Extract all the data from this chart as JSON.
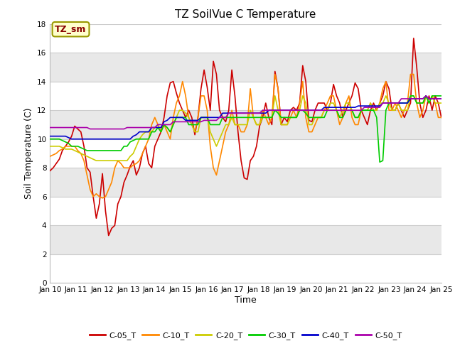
{
  "title": "TZ SoilVue C Temperature",
  "xlabel": "Time",
  "ylabel": "Soil Temperature (C)",
  "ylim": [
    0,
    18
  ],
  "yticks": [
    0,
    2,
    4,
    6,
    8,
    10,
    12,
    14,
    16,
    18
  ],
  "background_color": "#ffffff",
  "plot_bg_color": "#ffffff",
  "grid_color": "#cccccc",
  "band_colors": [
    "#ffffff",
    "#e8e8e8"
  ],
  "annotation_text": "TZ_sm",
  "annotation_bg": "#ffffcc",
  "annotation_border": "#999900",
  "legend_entries": [
    "C-05_T",
    "C-10_T",
    "C-20_T",
    "C-30_T",
    "C-40_T",
    "C-50_T"
  ],
  "line_colors": [
    "#cc0000",
    "#ff8800",
    "#cccc00",
    "#00cc00",
    "#0000cc",
    "#aa00aa"
  ],
  "x_tick_labels": [
    "Jan 10",
    "Jan 11",
    "Jan 12",
    "Jan 13",
    "Jan 14",
    "Jan 15",
    "Jan 16",
    "Jan 17",
    "Jan 18",
    "Jan 19",
    "Jan 20",
    "Jan 21",
    "Jan 22",
    "Jan 23",
    "Jan 24",
    "Jan 25"
  ],
  "C05": [
    7.8,
    8.0,
    8.3,
    8.6,
    9.2,
    9.5,
    9.8,
    10.2,
    10.9,
    10.7,
    10.5,
    9.5,
    8.0,
    7.7,
    6.0,
    4.5,
    5.5,
    7.6,
    5.0,
    3.3,
    3.8,
    4.0,
    5.5,
    6.0,
    7.0,
    7.5,
    8.1,
    8.5,
    7.5,
    8.0,
    9.0,
    9.5,
    8.3,
    8.0,
    9.5,
    10.0,
    10.5,
    11.5,
    13.0,
    13.9,
    14.0,
    13.2,
    12.5,
    12.0,
    11.5,
    12.0,
    11.5,
    10.3,
    11.5,
    13.5,
    14.8,
    13.6,
    12.0,
    15.4,
    14.5,
    12.0,
    11.5,
    11.2,
    12.0,
    14.8,
    13.0,
    10.5,
    8.5,
    7.3,
    7.2,
    8.5,
    8.8,
    9.5,
    10.9,
    11.5,
    12.5,
    11.5,
    11.0,
    14.7,
    13.5,
    11.0,
    11.5,
    11.2,
    12.0,
    12.2,
    12.0,
    12.5,
    15.1,
    14.0,
    11.3,
    11.2,
    12.0,
    12.5,
    12.5,
    12.5,
    12.0,
    12.5,
    13.8,
    13.0,
    12.5,
    11.5,
    12.0,
    12.5,
    13.0,
    13.9,
    13.5,
    12.0,
    11.5,
    11.0,
    12.0,
    12.5,
    12.0,
    12.5,
    13.0,
    14.0,
    13.5,
    12.0,
    12.0,
    12.5,
    12.0,
    11.5,
    12.0,
    12.5,
    17.0,
    15.0,
    12.5,
    11.5,
    12.0,
    13.0,
    12.0,
    13.0,
    12.5,
    11.5
  ],
  "C10": [
    8.8,
    8.9,
    9.0,
    9.2,
    9.3,
    9.5,
    9.5,
    9.5,
    9.5,
    9.2,
    9.0,
    8.5,
    7.5,
    6.5,
    6.0,
    6.2,
    6.0,
    5.9,
    6.0,
    6.5,
    7.0,
    8.0,
    8.5,
    8.3,
    8.0,
    8.0,
    8.0,
    8.2,
    8.3,
    8.5,
    9.0,
    9.5,
    10.0,
    11.0,
    11.5,
    11.0,
    10.5,
    11.0,
    10.5,
    10.0,
    11.5,
    12.5,
    13.0,
    14.0,
    13.0,
    11.5,
    11.0,
    10.5,
    11.5,
    13.0,
    13.0,
    12.0,
    9.5,
    8.0,
    7.5,
    8.5,
    9.5,
    10.5,
    11.0,
    12.0,
    11.0,
    11.0,
    10.5,
    10.5,
    11.0,
    13.5,
    11.5,
    11.0,
    11.0,
    12.0,
    11.5,
    11.0,
    11.5,
    14.5,
    13.5,
    11.0,
    11.0,
    11.0,
    11.5,
    12.0,
    11.5,
    12.5,
    14.0,
    11.5,
    10.5,
    10.5,
    11.0,
    11.5,
    11.5,
    12.0,
    12.5,
    13.0,
    13.0,
    12.0,
    11.0,
    11.5,
    12.5,
    13.0,
    11.5,
    11.0,
    11.0,
    12.0,
    12.0,
    12.0,
    12.5,
    12.0,
    12.0,
    12.5,
    13.5,
    14.0,
    12.0,
    12.0,
    12.5,
    12.0,
    11.5,
    12.0,
    12.5,
    14.5,
    14.5,
    12.5,
    11.5,
    12.0,
    13.0,
    12.5,
    13.0,
    12.5,
    11.5,
    11.5
  ],
  "C20": [
    9.5,
    9.5,
    9.5,
    9.5,
    9.4,
    9.3,
    9.3,
    9.3,
    9.2,
    9.1,
    9.0,
    8.9,
    8.8,
    8.7,
    8.6,
    8.5,
    8.5,
    8.5,
    8.5,
    8.5,
    8.5,
    8.5,
    8.5,
    8.5,
    8.5,
    8.5,
    8.8,
    9.0,
    9.5,
    10.0,
    10.3,
    10.5,
    10.5,
    10.5,
    10.8,
    11.0,
    10.5,
    11.0,
    10.8,
    10.5,
    11.0,
    11.5,
    12.0,
    12.0,
    11.8,
    11.5,
    11.0,
    10.5,
    10.5,
    11.5,
    11.5,
    11.5,
    10.5,
    10.0,
    9.5,
    10.0,
    10.5,
    11.0,
    11.0,
    11.5,
    11.0,
    11.0,
    11.0,
    11.0,
    11.0,
    12.0,
    11.5,
    11.0,
    11.0,
    11.5,
    11.5,
    11.5,
    11.5,
    13.0,
    12.0,
    11.0,
    11.0,
    11.0,
    11.5,
    11.5,
    11.5,
    12.0,
    13.0,
    12.5,
    11.0,
    11.0,
    11.5,
    11.5,
    11.5,
    12.0,
    12.0,
    12.5,
    12.5,
    12.0,
    11.5,
    12.0,
    12.5,
    12.5,
    12.0,
    11.5,
    11.5,
    12.0,
    12.0,
    12.0,
    12.5,
    12.0,
    12.0,
    12.5,
    12.5,
    13.0,
    12.5,
    12.0,
    12.0,
    12.5,
    12.0,
    12.0,
    12.0,
    13.0,
    13.0,
    12.5,
    12.5,
    12.5,
    13.0,
    12.5,
    13.0,
    12.5,
    12.5,
    12.5
  ],
  "C30": [
    10.0,
    10.0,
    10.0,
    10.0,
    9.9,
    9.8,
    9.7,
    9.5,
    9.5,
    9.5,
    9.4,
    9.3,
    9.2,
    9.2,
    9.2,
    9.2,
    9.2,
    9.2,
    9.2,
    9.2,
    9.2,
    9.2,
    9.2,
    9.2,
    9.5,
    9.5,
    9.8,
    9.9,
    10.0,
    10.0,
    10.0,
    10.0,
    10.0,
    10.5,
    10.5,
    10.8,
    10.5,
    11.0,
    10.8,
    10.5,
    11.0,
    11.5,
    11.5,
    11.5,
    11.5,
    11.0,
    11.0,
    11.0,
    11.0,
    11.5,
    11.5,
    11.5,
    11.0,
    11.0,
    11.0,
    11.0,
    11.5,
    11.5,
    11.5,
    11.5,
    11.5,
    11.5,
    11.5,
    11.5,
    11.5,
    11.5,
    11.5,
    11.5,
    11.5,
    11.5,
    11.5,
    11.5,
    11.5,
    12.0,
    11.8,
    11.5,
    11.5,
    11.5,
    11.5,
    11.5,
    11.5,
    12.0,
    12.0,
    11.8,
    11.5,
    11.5,
    11.5,
    11.5,
    11.5,
    11.5,
    12.0,
    12.0,
    12.0,
    12.0,
    11.5,
    11.5,
    12.0,
    12.0,
    12.0,
    11.5,
    11.5,
    12.0,
    12.0,
    12.0,
    12.0,
    12.0,
    11.5,
    8.4,
    8.5,
    12.0,
    12.5,
    12.5,
    12.5,
    12.5,
    12.5,
    12.5,
    12.5,
    13.0,
    13.0,
    12.5,
    12.5,
    12.5,
    13.0,
    12.5,
    13.0,
    13.0,
    13.0,
    13.0
  ],
  "C40": [
    10.2,
    10.2,
    10.2,
    10.2,
    10.2,
    10.2,
    10.1,
    10.0,
    10.0,
    10.0,
    10.0,
    10.0,
    10.0,
    10.0,
    10.0,
    10.0,
    10.0,
    10.0,
    10.0,
    10.0,
    10.0,
    10.0,
    10.0,
    10.0,
    10.0,
    10.0,
    10.0,
    10.2,
    10.3,
    10.5,
    10.5,
    10.5,
    10.5,
    10.8,
    10.8,
    10.8,
    10.8,
    11.2,
    11.3,
    11.5,
    11.5,
    11.5,
    11.5,
    11.5,
    11.3,
    11.3,
    11.3,
    11.3,
    11.3,
    11.5,
    11.5,
    11.5,
    11.5,
    11.5,
    11.5,
    11.5,
    11.8,
    11.8,
    11.8,
    11.8,
    11.8,
    11.8,
    11.8,
    11.8,
    11.8,
    11.8,
    11.8,
    11.8,
    11.8,
    11.8,
    11.8,
    12.0,
    12.0,
    12.0,
    12.0,
    12.0,
    12.0,
    12.0,
    12.0,
    12.0,
    12.0,
    12.0,
    12.0,
    12.0,
    12.0,
    12.0,
    12.0,
    12.0,
    12.0,
    12.2,
    12.2,
    12.2,
    12.2,
    12.2,
    12.2,
    12.2,
    12.2,
    12.2,
    12.2,
    12.2,
    12.3,
    12.3,
    12.3,
    12.3,
    12.3,
    12.3,
    12.3,
    12.3,
    12.5,
    12.5,
    12.5,
    12.5,
    12.5,
    12.5,
    12.5,
    12.5,
    12.5,
    12.8,
    12.8,
    12.8,
    12.8,
    12.8,
    13.0,
    12.8,
    12.8,
    12.8,
    12.8,
    12.8
  ],
  "C50": [
    10.8,
    10.8,
    10.8,
    10.8,
    10.8,
    10.8,
    10.8,
    10.8,
    10.8,
    10.8,
    10.8,
    10.8,
    10.8,
    10.7,
    10.7,
    10.7,
    10.7,
    10.7,
    10.7,
    10.7,
    10.7,
    10.7,
    10.7,
    10.7,
    10.7,
    10.8,
    10.8,
    10.8,
    10.8,
    10.8,
    10.8,
    10.8,
    10.8,
    10.8,
    10.8,
    11.0,
    11.0,
    11.0,
    11.0,
    11.0,
    11.2,
    11.2,
    11.2,
    11.2,
    11.2,
    11.2,
    11.2,
    11.2,
    11.2,
    11.2,
    11.3,
    11.3,
    11.3,
    11.3,
    11.3,
    11.5,
    11.5,
    11.5,
    11.8,
    11.8,
    11.8,
    11.8,
    11.8,
    11.8,
    11.8,
    11.8,
    11.8,
    11.8,
    11.8,
    12.0,
    12.0,
    12.0,
    12.0,
    12.0,
    12.0,
    12.0,
    12.0,
    12.0,
    12.0,
    12.0,
    12.0,
    12.0,
    12.0,
    12.0,
    12.0,
    12.0,
    12.0,
    12.0,
    12.0,
    12.0,
    12.0,
    12.0,
    12.0,
    12.0,
    12.0,
    12.0,
    12.0,
    12.0,
    12.0,
    12.0,
    12.0,
    12.0,
    12.2,
    12.2,
    12.2,
    12.2,
    12.2,
    12.2,
    12.5,
    12.5,
    12.5,
    12.5,
    12.5,
    12.5,
    12.8,
    12.8,
    12.8,
    12.8,
    12.8,
    12.8,
    12.8,
    12.8,
    13.0,
    12.8,
    12.8,
    12.8,
    12.8,
    12.8
  ]
}
